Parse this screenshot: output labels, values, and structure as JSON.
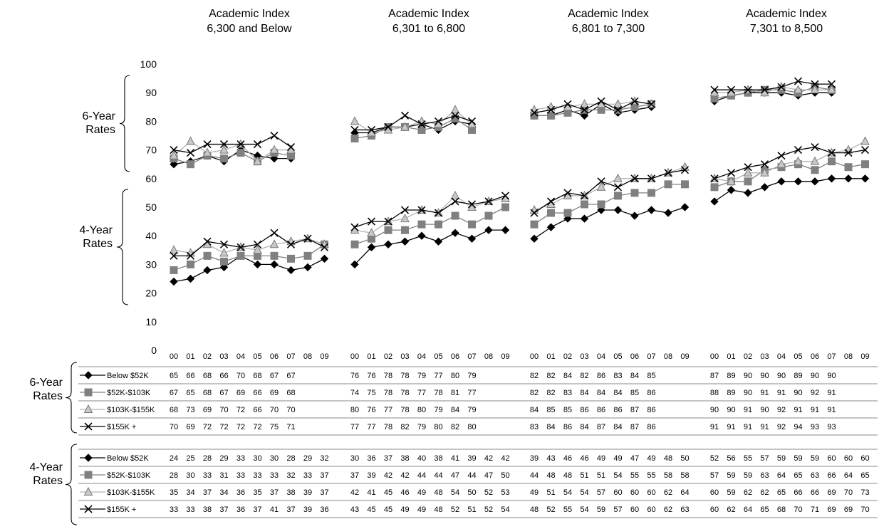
{
  "chart_data": {
    "type": "line",
    "y_axis": {
      "min": 0,
      "max": 100,
      "ticks": [
        "0",
        "10",
        "20",
        "30",
        "40",
        "50",
        "60",
        "70",
        "80",
        "90",
        "100"
      ]
    },
    "x_ticks": [
      "00",
      "01",
      "02",
      "03",
      "04",
      "05",
      "06",
      "07",
      "08",
      "09"
    ],
    "bracket_labels": {
      "six_year": [
        "6-Year",
        "Rates"
      ],
      "four_year": [
        "4-Year",
        "Rates"
      ]
    },
    "series_names": [
      "Below $52K",
      "$52K-$103K",
      "$103K-$155K",
      "$155K +"
    ],
    "series_styles": [
      {
        "color": "#000000",
        "marker": "diamond"
      },
      {
        "color": "#808080",
        "marker": "square"
      },
      {
        "color": "#b3b3b3",
        "marker": "triangle"
      },
      {
        "color": "#000000",
        "marker": "x"
      }
    ],
    "panels": [
      {
        "title": [
          "Academic Index",
          "6,300 and Below"
        ],
        "six_year": [
          [
            65,
            66,
            68,
            66,
            70,
            68,
            67,
            67
          ],
          [
            67,
            65,
            68,
            67,
            69,
            66,
            69,
            68
          ],
          [
            68,
            73,
            69,
            70,
            72,
            66,
            70,
            70
          ],
          [
            70,
            69,
            72,
            72,
            72,
            72,
            75,
            71
          ]
        ],
        "four_year": [
          [
            24,
            25,
            28,
            29,
            33,
            30,
            30,
            28,
            29,
            32
          ],
          [
            28,
            30,
            33,
            31,
            33,
            33,
            33,
            32,
            33,
            37
          ],
          [
            35,
            34,
            37,
            34,
            36,
            35,
            37,
            38,
            39,
            37
          ],
          [
            33,
            33,
            38,
            37,
            36,
            37,
            41,
            37,
            39,
            36
          ]
        ]
      },
      {
        "title": [
          "Academic Index",
          "6,301 to 6,800"
        ],
        "six_year": [
          [
            76,
            76,
            78,
            78,
            79,
            77,
            80,
            79
          ],
          [
            74,
            75,
            78,
            78,
            77,
            78,
            81,
            77
          ],
          [
            80,
            76,
            77,
            78,
            80,
            79,
            84,
            79
          ],
          [
            77,
            77,
            78,
            82,
            79,
            80,
            82,
            80
          ]
        ],
        "four_year": [
          [
            30,
            36,
            37,
            38,
            40,
            38,
            41,
            39,
            42,
            42
          ],
          [
            37,
            39,
            42,
            42,
            44,
            44,
            47,
            44,
            47,
            50
          ],
          [
            42,
            41,
            45,
            46,
            49,
            48,
            54,
            50,
            52,
            53
          ],
          [
            43,
            45,
            45,
            49,
            49,
            48,
            52,
            51,
            52,
            54
          ]
        ]
      },
      {
        "title": [
          "Academic Index",
          "6,801 to 7,300"
        ],
        "six_year": [
          [
            82,
            82,
            84,
            82,
            86,
            83,
            84,
            85
          ],
          [
            82,
            82,
            83,
            84,
            84,
            84,
            85,
            86
          ],
          [
            84,
            85,
            85,
            86,
            86,
            86,
            87,
            86
          ],
          [
            83,
            84,
            86,
            84,
            87,
            84,
            87,
            86
          ]
        ],
        "four_year": [
          [
            39,
            43,
            46,
            46,
            49,
            49,
            47,
            49,
            48,
            50
          ],
          [
            44,
            48,
            48,
            51,
            51,
            54,
            55,
            55,
            58,
            58
          ],
          [
            49,
            51,
            54,
            54,
            57,
            60,
            60,
            60,
            62,
            64
          ],
          [
            48,
            52,
            55,
            54,
            59,
            57,
            60,
            60,
            62,
            63
          ]
        ]
      },
      {
        "title": [
          "Academic Index",
          "7,301 to 8,500"
        ],
        "six_year": [
          [
            87,
            89,
            90,
            90,
            90,
            89,
            90,
            90
          ],
          [
            88,
            89,
            90,
            91,
            91,
            90,
            92,
            91
          ],
          [
            90,
            90,
            91,
            90,
            92,
            91,
            91,
            91
          ],
          [
            91,
            91,
            91,
            91,
            92,
            94,
            93,
            93
          ]
        ],
        "four_year": [
          [
            52,
            56,
            55,
            57,
            59,
            59,
            59,
            60,
            60,
            60
          ],
          [
            57,
            59,
            59,
            63,
            64,
            65,
            63,
            66,
            64,
            65
          ],
          [
            60,
            59,
            62,
            62,
            65,
            66,
            66,
            69,
            70,
            73
          ],
          [
            60,
            62,
            64,
            65,
            68,
            70,
            71,
            69,
            69,
            70
          ]
        ]
      }
    ]
  }
}
